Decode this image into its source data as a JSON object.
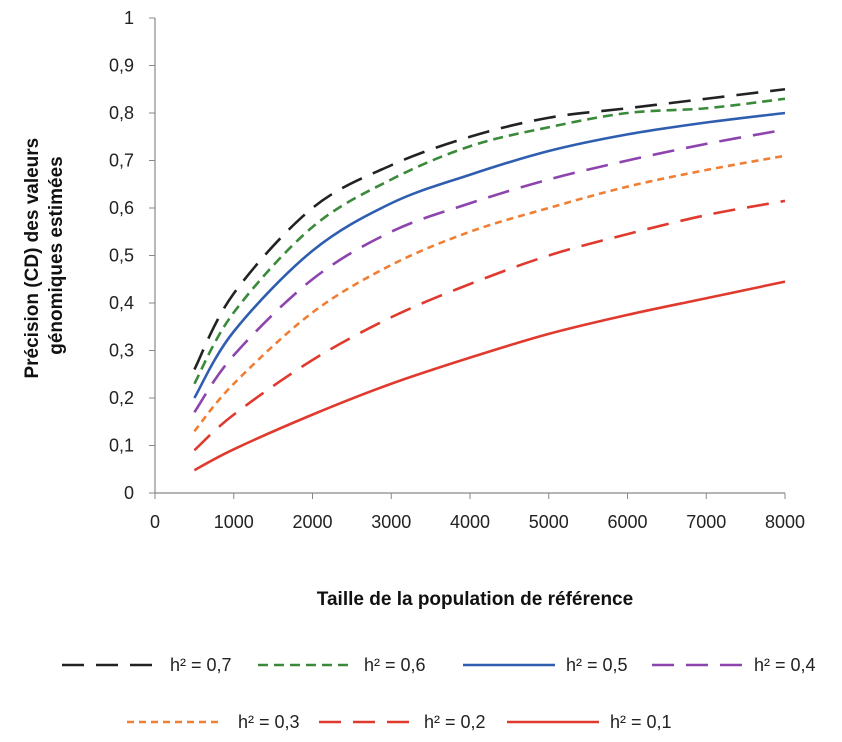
{
  "chart_data": {
    "type": "line",
    "xlabel": "Taille de la population de référence",
    "ylabel": [
      "Précision (CD) des valeurs",
      "génomiques estimées"
    ],
    "xlim": [
      0,
      8000
    ],
    "ylim": [
      0,
      1
    ],
    "x_ticks": [
      "0",
      "1000",
      "2000",
      "3000",
      "4000",
      "5000",
      "6000",
      "7000",
      "8000"
    ],
    "y_ticks": [
      "0",
      "0,1",
      "0,2",
      "0,3",
      "0,4",
      "0,5",
      "0,6",
      "0,7",
      "0,8",
      "0,9",
      "1"
    ],
    "grid": false,
    "legend_position": "bottom",
    "x": [
      500,
      1000,
      2000,
      3000,
      4000,
      5000,
      6000,
      7000,
      8000
    ],
    "series": [
      {
        "name": "h² = 0,7",
        "color": "#222222",
        "dash": "long",
        "values": [
          0.26,
          0.42,
          0.6,
          0.69,
          0.75,
          0.79,
          0.81,
          0.83,
          0.85
        ]
      },
      {
        "name": "h² = 0,6",
        "color": "#3a8a3a",
        "dash": "medium",
        "values": [
          0.23,
          0.38,
          0.56,
          0.66,
          0.73,
          0.77,
          0.8,
          0.81,
          0.83
        ]
      },
      {
        "name": "h² = 0,5",
        "color": "#2f5eb0",
        "dash": "solid",
        "values": [
          0.2,
          0.34,
          0.51,
          0.61,
          0.67,
          0.72,
          0.755,
          0.78,
          0.8
        ]
      },
      {
        "name": "h² = 0,4",
        "color": "#8e44ad",
        "dash": "long",
        "values": [
          0.17,
          0.29,
          0.45,
          0.55,
          0.61,
          0.66,
          0.7,
          0.735,
          0.765
        ]
      },
      {
        "name": "h² = 0,3",
        "color": "#f07f35",
        "dash": "short",
        "values": [
          0.13,
          0.23,
          0.38,
          0.48,
          0.55,
          0.6,
          0.645,
          0.68,
          0.71
        ]
      },
      {
        "name": "h² = 0,2",
        "color": "#e03a2e",
        "dash": "long",
        "values": [
          0.09,
          0.165,
          0.28,
          0.37,
          0.44,
          0.5,
          0.545,
          0.585,
          0.615
        ]
      },
      {
        "name": "h² = 0,1",
        "color": "#e03a2e",
        "dash": "solid",
        "values": [
          0.048,
          0.092,
          0.165,
          0.23,
          0.285,
          0.335,
          0.375,
          0.41,
          0.445
        ]
      }
    ]
  }
}
